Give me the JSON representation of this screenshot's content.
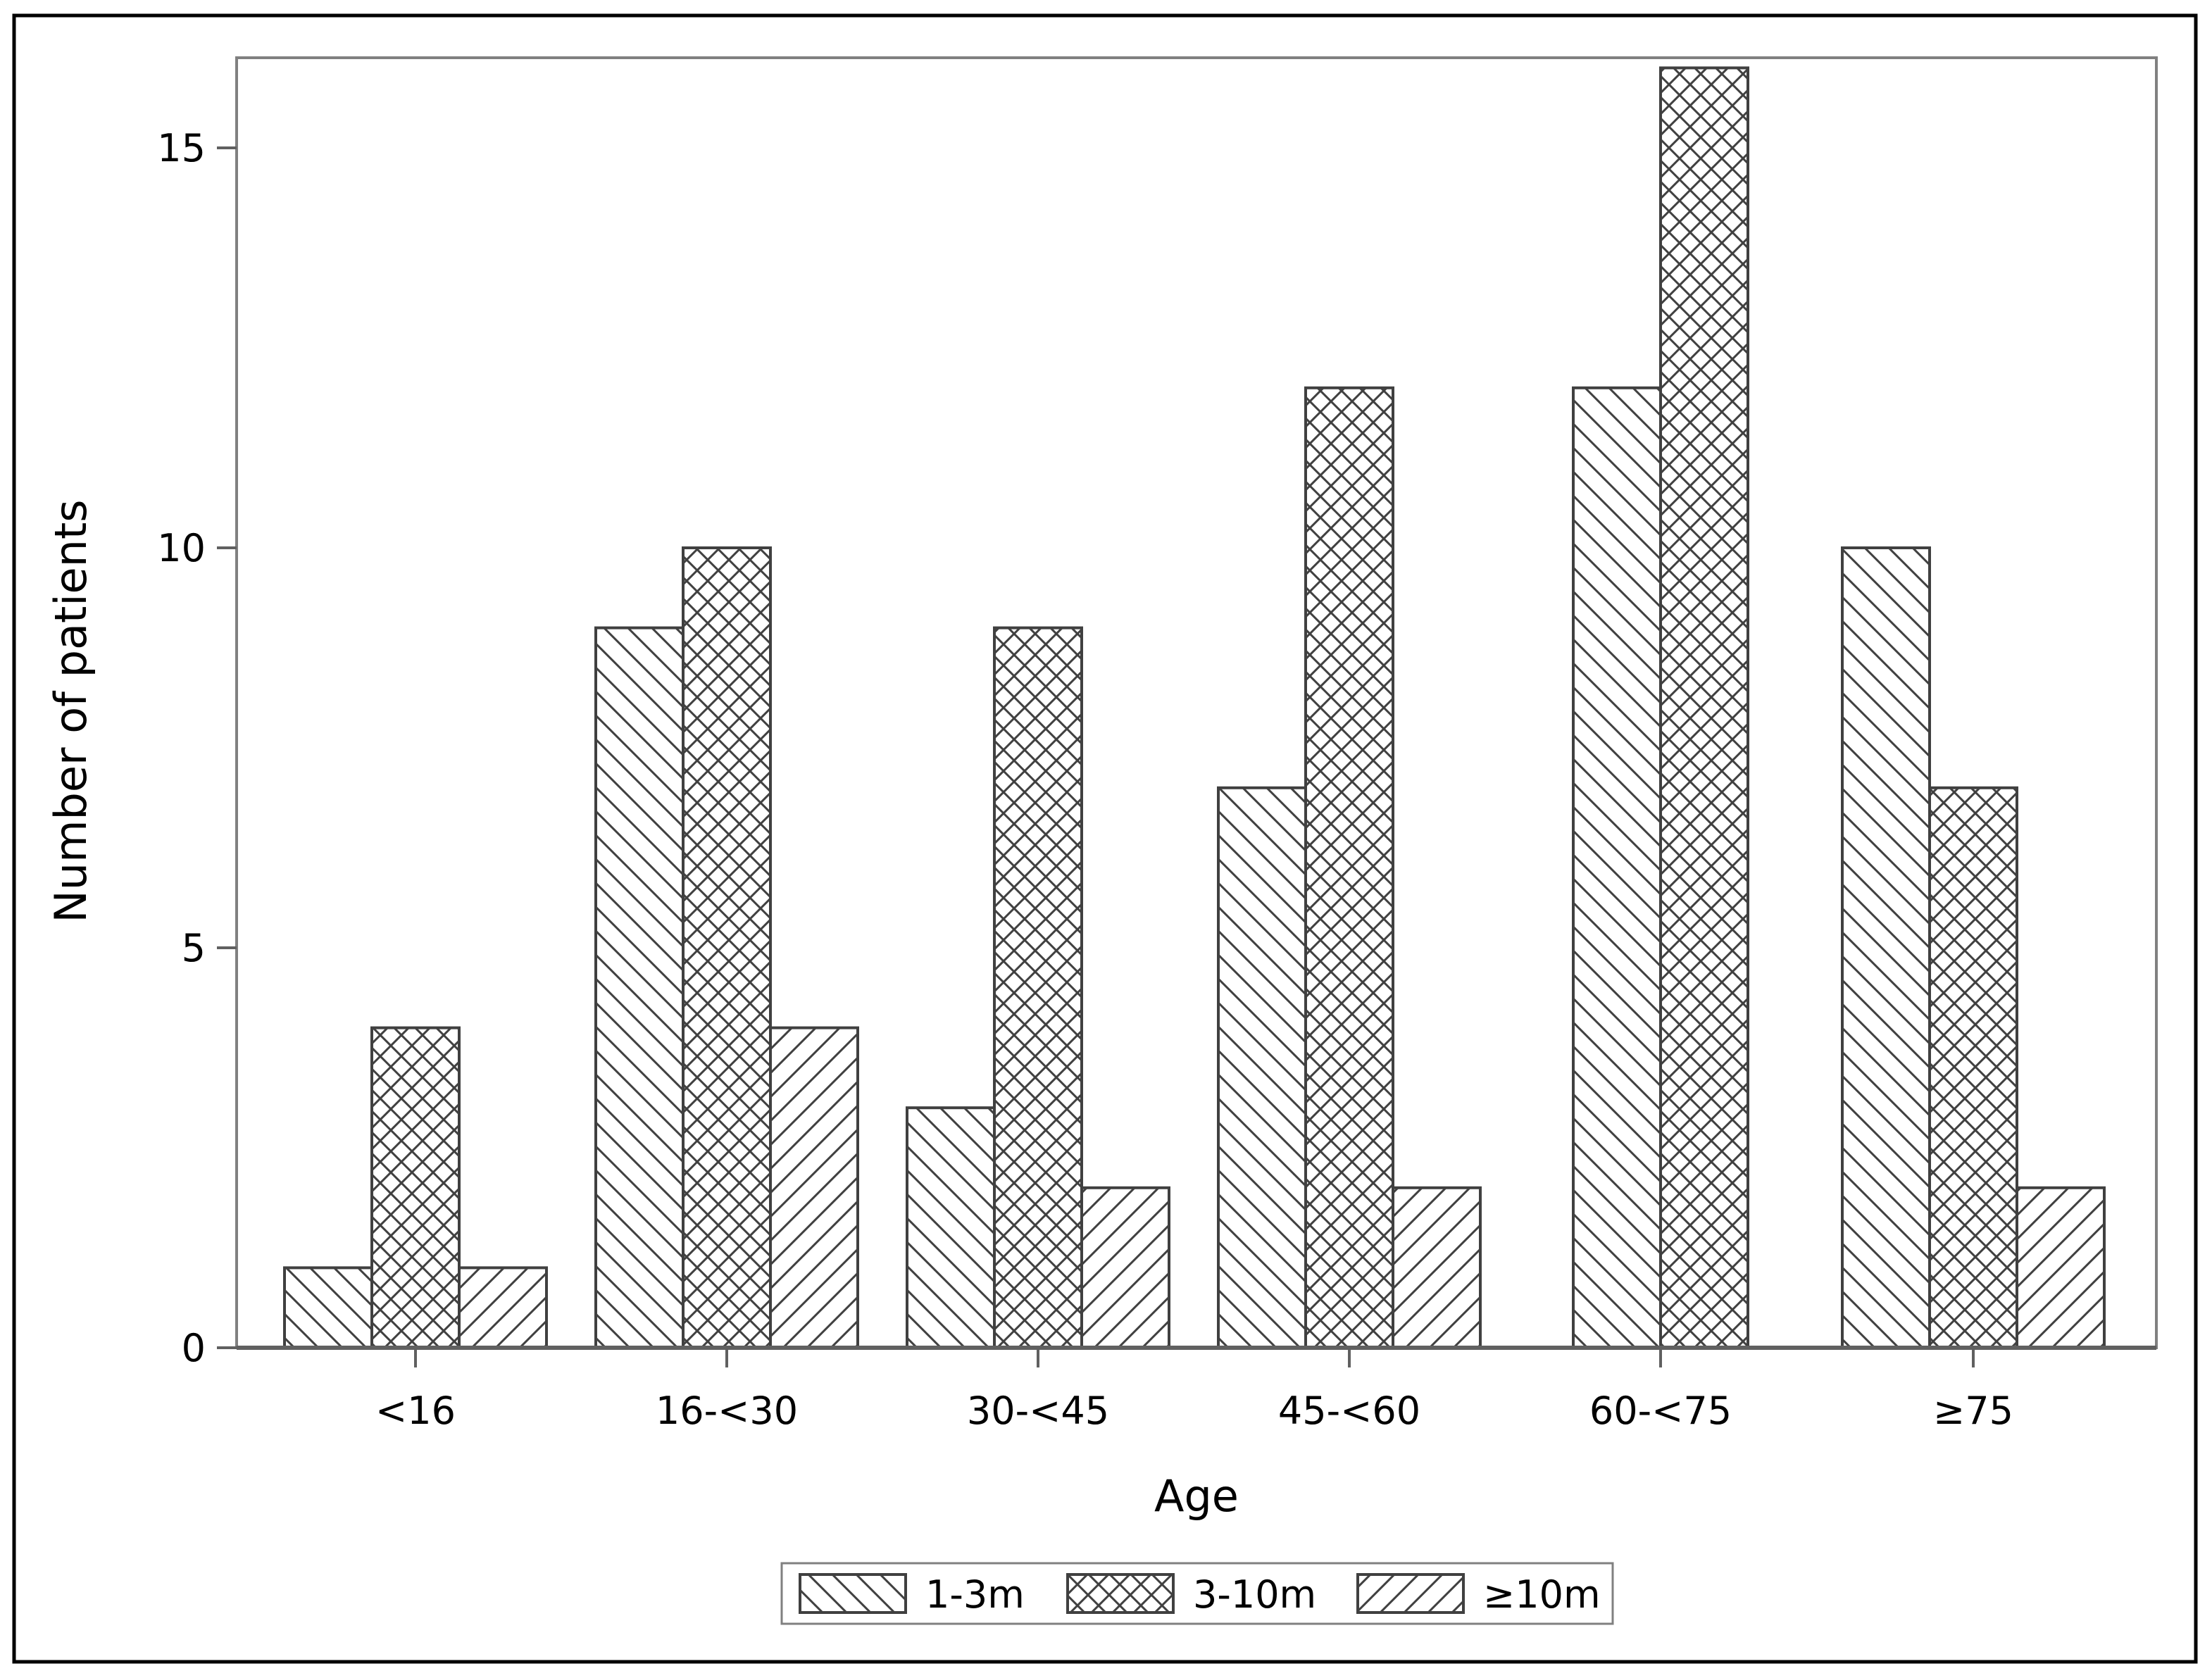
{
  "chart_data": {
    "type": "bar",
    "title": "",
    "xlabel": "Age",
    "ylabel": "Number of patients",
    "categories": [
      "<16",
      "16-<30",
      "30-<45",
      "45-<60",
      "60-<75",
      "≥75"
    ],
    "series": [
      {
        "name": "1-3m",
        "pattern": "back-diagonal",
        "values": [
          1,
          9,
          3,
          7,
          12,
          10
        ]
      },
      {
        "name": "3-10m",
        "pattern": "crosshatch",
        "values": [
          4,
          10,
          9,
          12,
          16,
          7
        ]
      },
      {
        "name": "≥10m",
        "pattern": "forward-diagonal",
        "values": [
          1,
          4,
          2,
          2,
          0,
          2
        ]
      }
    ],
    "ylim": [
      0,
      16.5
    ],
    "yticks": [
      0,
      5,
      10,
      15
    ],
    "grid": false,
    "legend_position": "bottom-center",
    "colors": {
      "stroke": "#404040",
      "fill": "#ffffff",
      "frame": "#808080"
    }
  }
}
